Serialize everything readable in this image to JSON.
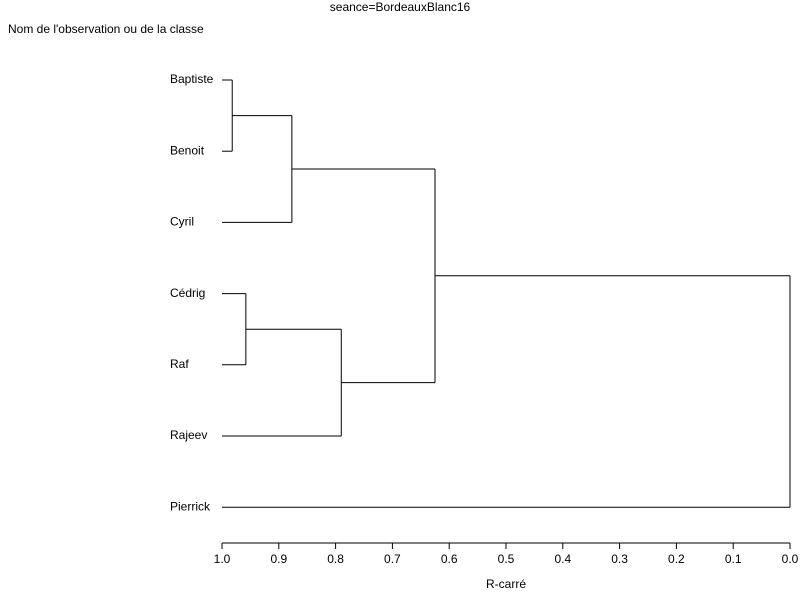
{
  "chart_data": {
    "type": "dendrogram",
    "title": "seance=BordeauxBlanc16",
    "ylabel": "Nom de l'observation ou de la classe",
    "xlabel": "R-carré",
    "xlim": [
      1,
      0
    ],
    "xticks": [
      {
        "value": 1,
        "label": "1.0"
      },
      0.9,
      0.8,
      0.7,
      0.6,
      0.5,
      0.4,
      0.3,
      0.2,
      0.1,
      {
        "value": 0,
        "label": "0.0"
      }
    ],
    "tree": {
      "height": 0,
      "children": [
        {
          "height": 0.625,
          "children": [
            {
              "height": 0.877,
              "children": [
                {
                  "height": 0.982,
                  "children": [
                    "Baptiste",
                    "Benoit"
                  ]
                },
                "Cyril"
              ]
            },
            {
              "height": 0.79,
              "children": [
                {
                  "height": 0.958,
                  "children": [
                    "Cédrig",
                    "Raf"
                  ]
                },
                "Rajeev"
              ]
            }
          ]
        },
        "Pierrick"
      ]
    }
  }
}
